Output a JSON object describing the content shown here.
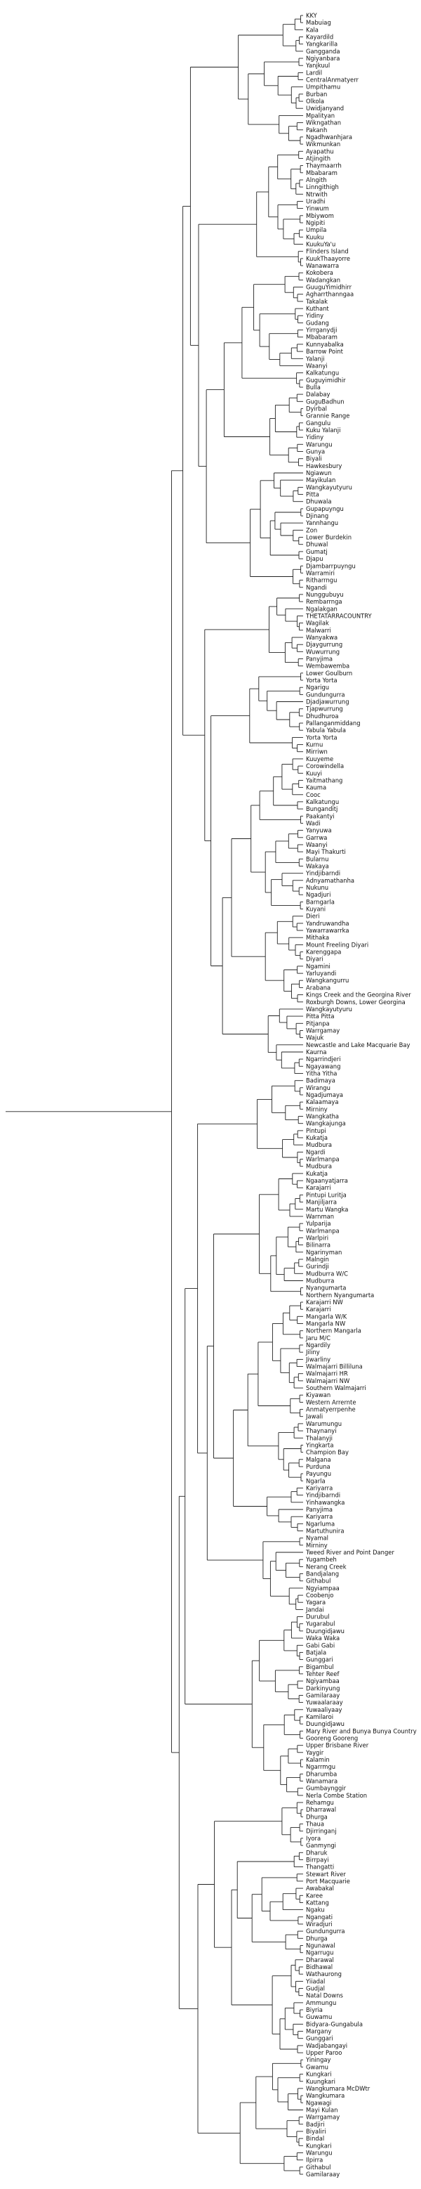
{
  "tree": {
    "line_color": "#222222",
    "taxa": [
      "KKY",
      "Mabuiag",
      "Kala",
      "Kayardild",
      "Yangkarilla",
      "Gangganda",
      "Ngiyanbara",
      "Yanjkuul",
      "Lardil",
      "CentralAnmatyerr",
      "Umpithamu",
      "Burban",
      "Olkola",
      "Uwidjanyand",
      "Mpalityan",
      "Wikngathan",
      "Pakanh",
      "Ngadhwanhjara",
      "Wikmunkan",
      "Ayapathu",
      "Atjingith",
      "Thaymaarrh",
      "Mbabaram",
      "Alngith",
      "Linngithigh",
      "Ntrwith",
      "Uradhi",
      "Yinwum",
      "Mbiywom",
      "Ngipiti",
      "Umpila",
      "Kuuku",
      "KuukuYa'u",
      "Flinders Island",
      "KuukThaayorre",
      "Wanawarra",
      "Kokobera",
      "Wadangkan",
      "GuuguYimidhirr",
      "Agharrthanngaa",
      "Takalak",
      "Kuthant",
      "Yidiny",
      "Gudang",
      "Yirrganydji",
      "Mbabaram",
      "Kunnyabalka",
      "Barrow Point",
      "Yalanji",
      "Waanyi",
      "Kalkatungu",
      "Guguyimidhir",
      "Bulla",
      "Dalabay",
      "GuguBadhun",
      "Dyirbal",
      "Grannie Range",
      "Gangulu",
      "Kuku Yalanji",
      "Yidiny",
      "Warungu",
      "Gunya",
      "Biyali",
      "Hawkesbury",
      "Ngiawun",
      "Mayikulan",
      "Wangkayutyuru",
      "Pitta",
      "Dhuwala",
      "Gupapuyngu",
      "Djinang",
      "Yannhangu",
      "Zon",
      "Lower Burdekin",
      "Dhuwal",
      "Gumatj",
      "Djapu",
      "Djambarrpuyngu",
      "Warramiri",
      "Ritharrngu",
      "Ngandi",
      "Nunggubuyu",
      "Rembarrnga",
      "Ngalakgan",
      "THETATARRACOUNTRY",
      "Wagilak",
      "Malwarri",
      "Wanyakwa",
      "Djaygurrung",
      "Wuwurrung",
      "Panyjima",
      "Wembawemba",
      "Lower Goulburn",
      "Yorta Yorta",
      "Ngarigu",
      "Gundungurra",
      "Djadjawurrung",
      "Tjapwurrung",
      "Dhudhuroa",
      "Pallanganmiddang",
      "Yabula Yabula",
      "Yorta Yorta",
      "Kurnu",
      "Mirriwn",
      "Kuuyeme",
      "Corowindella",
      "Kuuyi",
      "Yaitmathang",
      "Kauma",
      "Cooc",
      "Kalkatungu",
      "Bunganditj",
      "Paakantyi",
      "Wadi",
      "Yanyuwa",
      "Garrwa",
      "Waanyi",
      "Mayi Thakurti",
      "Bularnu",
      "Wakaya",
      "Yindjibarndi",
      "Adnyamathanha",
      "Nukunu",
      "Ngadjuri",
      "Barngarla",
      "Kuyani",
      "Dieri",
      "Yandruwandha",
      "Yawarrawarrka",
      "Mithaka",
      "Mount Freeling Diyari",
      "Karenggapa",
      "Diyari",
      "Ngamini",
      "Yarluyandi",
      "Wangkangurru",
      "Arabana",
      "Kings Creek and the Georgina River",
      "Roxburgh Downs, Lower Georgina",
      "Wangkayutyuru",
      "Pitta Pitta",
      "Pitjanpa",
      "Warrgamay",
      "Wajuk",
      "Newcastle and Lake Macquarie Bay",
      "Kaurna",
      "Ngarrindjeri",
      "Ngayawang",
      "Yitha Yitha",
      "Badimaya",
      "Wirangu",
      "Ngadjumaya",
      "Kalaamaya",
      "Mirniny",
      "Wangkatha",
      "Wangkajunga",
      "Pintupi",
      "Kukatja",
      "Mudbura",
      "Ngardi",
      "Warlmanpa",
      "Mudbura",
      "Kukatja",
      "Ngaanyatjarra",
      "Karajarri",
      "Pintupi Luritja",
      "Manjiljarra",
      "Martu Wangka",
      "Warnman",
      "Yulparija",
      "Warlmanpa",
      "Warlpiri",
      "Bilinarra",
      "Ngarinyman",
      "Malngin",
      "Gurindji",
      "Mudburra W/C",
      "Mudburra",
      "Nyangumarta",
      "Northern Nyangumarta",
      "Karajarri NW",
      "Karajarri",
      "Mangarla W/K",
      "Mangarla NW",
      "Northern Mangarla",
      "Jaru M/C",
      "Ngardily",
      "Jiliny",
      "Jiwarliny",
      "Walmajarri Billiluna",
      "Walmajarri HR",
      "Walmajarri NW",
      "Southern Walmajarri",
      "Kiyawan",
      "Western Arrernte",
      "Anmatyerrpenhe",
      "Jawali",
      "Warumungu",
      "Thaynanyi",
      "Thalanyji",
      "Yingkarta",
      "Champion Bay",
      "Malgana",
      "Purduna",
      "Payungu",
      "Ngarla",
      "Kariyarra",
      "Yindjibarndi",
      "Yinhawangka",
      "Panyjima",
      "Kariyarra",
      "Ngarluma",
      "Martuthunira",
      "Nyamal",
      "Mirniny",
      "Tweed River and Point Danger",
      "Yugambeh",
      "Nerang Creek",
      "Bandjalang",
      "Githabul",
      "Ngyiampaa",
      "Coobenjo",
      "Yagara",
      "Jandai",
      "Durubul",
      "Yugarabul",
      "Duungidjawu",
      "Waka Waka",
      "Gabi Gabi",
      "Batjala",
      "Gunggari",
      "Bigambul",
      "Tehter Reef",
      "Ngiyambaa",
      "Darkinyung",
      "Gamilaraay",
      "Yuwaalaraay",
      "Yuwaaliyaay",
      "Kamilaroi",
      "Duungidjawu",
      "Mary River and Bunya Bunya Country",
      "Gooreng Gooreng",
      "Upper Brisbane River",
      "Yaygir",
      "Kalamin",
      "Ngarrmgu",
      "Dharumba",
      "Wanamara",
      "Gumbaynggir",
      "Nerla Combe Station",
      "Rehamgu",
      "Dharrawal",
      "Dhurga",
      "Thaua",
      "Djirringanj",
      "Iyora",
      "Ganmyngi",
      "Dharuk",
      "Birrpayi",
      "Thangatti",
      "Stewart River",
      "Port Macquarie",
      "Awabakal",
      "Karee",
      "Kattang",
      "Ngaku",
      "Ngangati",
      "Wiradjuri",
      "Gundungurra",
      "Dhurga",
      "Ngunawal",
      "Ngarrugu",
      "Dharawal",
      "Bidhawal",
      "Wathaurong",
      "Yiiadal",
      "Gudjal",
      "Natal Downs",
      "Ammungu",
      "Biyria",
      "Guwamu",
      "Bidyara-Gungabula",
      "Margany",
      "Gunggari",
      "Wadjabangayi",
      "Upper Paroo",
      "Yiningay",
      "Gwamu",
      "Kungkari",
      "Kuungkari",
      "Wangkumara McDWtr",
      "Wangkumara",
      "Ngawagi",
      "Mayi Kulan",
      "Warrgamay",
      "Badjiri",
      "Biyaliri",
      "Bindal",
      "Kungkari",
      "Warungu",
      "Ilpirra",
      "Githabul",
      "Gamilaraay"
    ]
  }
}
